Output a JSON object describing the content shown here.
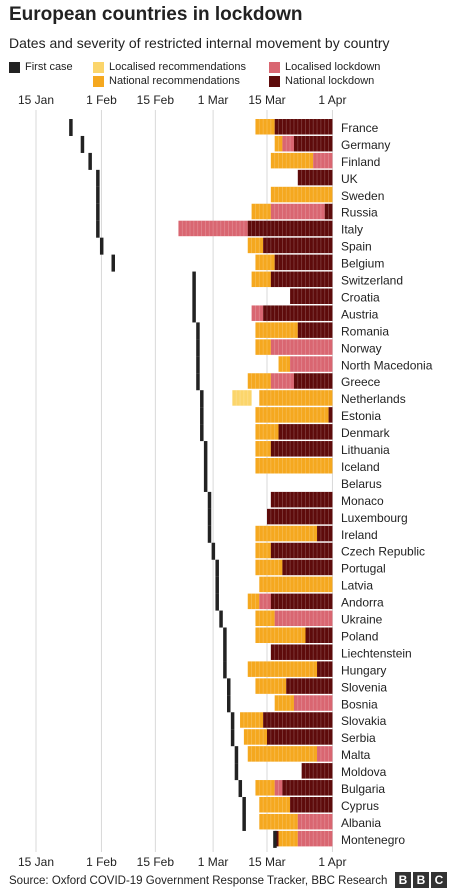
{
  "title": "European countries in lockdown",
  "subtitle": "Dates and severity of restricted internal movement by country",
  "source": "Source: Oxford COVID-19 Government Response Tracker, BBC Research",
  "logo": [
    "B",
    "B",
    "C"
  ],
  "legend": {
    "first_case": "First case",
    "loc_rec": "Localised recommendations",
    "nat_rec": "National recommendations",
    "loc_lock": "Localised lockdown",
    "nat_lock": "National lockdown"
  },
  "colors": {
    "first_case": "#222222",
    "loc_rec": "#fbd56b",
    "nat_rec": "#f5a81f",
    "loc_lock": "#d96671",
    "nat_lock": "#5e0b0b",
    "grid": "#d9d9d9"
  },
  "chart_data": {
    "type": "timeline",
    "x_axis": {
      "ticks": [
        "15 Jan",
        "1 Feb",
        "15 Feb",
        "1 Mar",
        "15 Mar",
        "1 Apr"
      ],
      "tick_days": [
        0,
        17,
        31,
        46,
        60,
        77
      ],
      "range": [
        "15 Jan",
        "1 Apr"
      ]
    },
    "level_codes": {
      "0": "none",
      "1": "Localised recommendations",
      "2": "National recommendations",
      "3": "Localised lockdown",
      "4": "National lockdown"
    },
    "countries": [
      {
        "name": "France",
        "first_case": "24 Jan",
        "segments": [
          [
            "12 Mar",
            "17 Mar",
            2
          ],
          [
            "17 Mar",
            "1 Apr",
            4
          ]
        ]
      },
      {
        "name": "Germany",
        "first_case": "27 Jan",
        "segments": [
          [
            "17 Mar",
            "19 Mar",
            2
          ],
          [
            "19 Mar",
            "22 Mar",
            3
          ],
          [
            "22 Mar",
            "1 Apr",
            4
          ]
        ]
      },
      {
        "name": "Finland",
        "first_case": "29 Jan",
        "segments": [
          [
            "16 Mar",
            "27 Mar",
            2
          ],
          [
            "27 Mar",
            "1 Apr",
            3
          ]
        ]
      },
      {
        "name": "UK",
        "first_case": "31 Jan",
        "segments": [
          [
            "23 Mar",
            "1 Apr",
            4
          ]
        ]
      },
      {
        "name": "Sweden",
        "first_case": "31 Jan",
        "segments": [
          [
            "16 Mar",
            "1 Apr",
            2
          ]
        ]
      },
      {
        "name": "Russia",
        "first_case": "31 Jan",
        "segments": [
          [
            "11 Mar",
            "16 Mar",
            2
          ],
          [
            "16 Mar",
            "30 Mar",
            3
          ],
          [
            "30 Mar",
            "1 Apr",
            4
          ]
        ]
      },
      {
        "name": "Italy",
        "first_case": "31 Jan",
        "segments": [
          [
            "21 Feb",
            "10 Mar",
            3
          ],
          [
            "10 Mar",
            "1 Apr",
            4
          ]
        ]
      },
      {
        "name": "Spain",
        "first_case": "1 Feb",
        "segments": [
          [
            "10 Mar",
            "14 Mar",
            2
          ],
          [
            "14 Mar",
            "1 Apr",
            4
          ]
        ]
      },
      {
        "name": "Belgium",
        "first_case": "4 Feb",
        "segments": [
          [
            "12 Mar",
            "17 Mar",
            2
          ],
          [
            "17 Mar",
            "1 Apr",
            4
          ]
        ]
      },
      {
        "name": "Switzerland",
        "first_case": "25 Feb",
        "segments": [
          [
            "11 Mar",
            "16 Mar",
            2
          ],
          [
            "16 Mar",
            "1 Apr",
            4
          ]
        ]
      },
      {
        "name": "Croatia",
        "first_case": "25 Feb",
        "segments": [
          [
            "21 Mar",
            "1 Apr",
            4
          ]
        ]
      },
      {
        "name": "Austria",
        "first_case": "25 Feb",
        "segments": [
          [
            "11 Mar",
            "14 Mar",
            3
          ],
          [
            "14 Mar",
            "1 Apr",
            4
          ]
        ]
      },
      {
        "name": "Romania",
        "first_case": "26 Feb",
        "segments": [
          [
            "12 Mar",
            "23 Mar",
            2
          ],
          [
            "23 Mar",
            "1 Apr",
            4
          ]
        ]
      },
      {
        "name": "Norway",
        "first_case": "26 Feb",
        "segments": [
          [
            "12 Mar",
            "16 Mar",
            2
          ],
          [
            "16 Mar",
            "1 Apr",
            3
          ]
        ]
      },
      {
        "name": "North Macedonia",
        "first_case": "26 Feb",
        "segments": [
          [
            "18 Mar",
            "21 Mar",
            2
          ],
          [
            "21 Mar",
            "1 Apr",
            3
          ]
        ]
      },
      {
        "name": "Greece",
        "first_case": "26 Feb",
        "segments": [
          [
            "10 Mar",
            "16 Mar",
            2
          ],
          [
            "16 Mar",
            "22 Mar",
            3
          ],
          [
            "22 Mar",
            "1 Apr",
            4
          ]
        ]
      },
      {
        "name": "Netherlands",
        "first_case": "27 Feb",
        "segments": [
          [
            "6 Mar",
            "11 Mar",
            1
          ],
          [
            "13 Mar",
            "1 Apr",
            2
          ]
        ]
      },
      {
        "name": "Estonia",
        "first_case": "27 Feb",
        "segments": [
          [
            "12 Mar",
            "31 Mar",
            2
          ],
          [
            "31 Mar",
            "1 Apr",
            4
          ]
        ]
      },
      {
        "name": "Denmark",
        "first_case": "27 Feb",
        "segments": [
          [
            "12 Mar",
            "18 Mar",
            2
          ],
          [
            "18 Mar",
            "1 Apr",
            4
          ]
        ]
      },
      {
        "name": "Lithuania",
        "first_case": "28 Feb",
        "segments": [
          [
            "12 Mar",
            "16 Mar",
            2
          ],
          [
            "16 Mar",
            "1 Apr",
            4
          ]
        ]
      },
      {
        "name": "Iceland",
        "first_case": "28 Feb",
        "segments": [
          [
            "12 Mar",
            "1 Apr",
            2
          ]
        ]
      },
      {
        "name": "Belarus",
        "first_case": "28 Feb",
        "segments": []
      },
      {
        "name": "Monaco",
        "first_case": "29 Feb",
        "segments": [
          [
            "16 Mar",
            "1 Apr",
            4
          ]
        ]
      },
      {
        "name": "Luxembourg",
        "first_case": "29 Feb",
        "segments": [
          [
            "15 Mar",
            "1 Apr",
            4
          ]
        ]
      },
      {
        "name": "Ireland",
        "first_case": "29 Feb",
        "segments": [
          [
            "12 Mar",
            "28 Mar",
            2
          ],
          [
            "28 Mar",
            "1 Apr",
            4
          ]
        ]
      },
      {
        "name": "Czech Republic",
        "first_case": "1 Mar",
        "segments": [
          [
            "12 Mar",
            "16 Mar",
            2
          ],
          [
            "16 Mar",
            "1 Apr",
            4
          ]
        ]
      },
      {
        "name": "Portugal",
        "first_case": "2 Mar",
        "segments": [
          [
            "12 Mar",
            "19 Mar",
            2
          ],
          [
            "19 Mar",
            "1 Apr",
            4
          ]
        ]
      },
      {
        "name": "Latvia",
        "first_case": "2 Mar",
        "segments": [
          [
            "13 Mar",
            "1 Apr",
            2
          ]
        ]
      },
      {
        "name": "Andorra",
        "first_case": "2 Mar",
        "segments": [
          [
            "10 Mar",
            "13 Mar",
            2
          ],
          [
            "13 Mar",
            "16 Mar",
            3
          ],
          [
            "16 Mar",
            "1 Apr",
            4
          ]
        ]
      },
      {
        "name": "Ukraine",
        "first_case": "3 Mar",
        "segments": [
          [
            "12 Mar",
            "17 Mar",
            2
          ],
          [
            "17 Mar",
            "1 Apr",
            3
          ]
        ]
      },
      {
        "name": "Poland",
        "first_case": "4 Mar",
        "segments": [
          [
            "12 Mar",
            "25 Mar",
            2
          ],
          [
            "25 Mar",
            "1 Apr",
            4
          ]
        ]
      },
      {
        "name": "Liechtenstein",
        "first_case": "4 Mar",
        "segments": [
          [
            "16 Mar",
            "1 Apr",
            4
          ]
        ]
      },
      {
        "name": "Hungary",
        "first_case": "4 Mar",
        "segments": [
          [
            "10 Mar",
            "28 Mar",
            2
          ],
          [
            "28 Mar",
            "1 Apr",
            4
          ]
        ]
      },
      {
        "name": "Slovenia",
        "first_case": "5 Mar",
        "segments": [
          [
            "12 Mar",
            "20 Mar",
            2
          ],
          [
            "20 Mar",
            "1 Apr",
            4
          ]
        ]
      },
      {
        "name": "Bosnia",
        "first_case": "5 Mar",
        "segments": [
          [
            "17 Mar",
            "22 Mar",
            2
          ],
          [
            "22 Mar",
            "1 Apr",
            3
          ]
        ]
      },
      {
        "name": "Slovakia",
        "first_case": "6 Mar",
        "segments": [
          [
            "8 Mar",
            "14 Mar",
            2
          ],
          [
            "14 Mar",
            "1 Apr",
            4
          ]
        ]
      },
      {
        "name": "Serbia",
        "first_case": "6 Mar",
        "segments": [
          [
            "9 Mar",
            "15 Mar",
            2
          ],
          [
            "15 Mar",
            "1 Apr",
            4
          ]
        ]
      },
      {
        "name": "Malta",
        "first_case": "7 Mar",
        "segments": [
          [
            "10 Mar",
            "28 Mar",
            2
          ],
          [
            "28 Mar",
            "1 Apr",
            3
          ]
        ]
      },
      {
        "name": "Moldova",
        "first_case": "7 Mar",
        "segments": [
          [
            "24 Mar",
            "1 Apr",
            4
          ]
        ]
      },
      {
        "name": "Bulgaria",
        "first_case": "8 Mar",
        "segments": [
          [
            "12 Mar",
            "17 Mar",
            2
          ],
          [
            "17 Mar",
            "19 Mar",
            3
          ],
          [
            "19 Mar",
            "1 Apr",
            4
          ]
        ]
      },
      {
        "name": "Cyprus",
        "first_case": "9 Mar",
        "segments": [
          [
            "13 Mar",
            "21 Mar",
            2
          ],
          [
            "21 Mar",
            "1 Apr",
            4
          ]
        ]
      },
      {
        "name": "Albania",
        "first_case": "9 Mar",
        "segments": [
          [
            "13 Mar",
            "23 Mar",
            2
          ],
          [
            "23 Mar",
            "1 Apr",
            3
          ]
        ]
      },
      {
        "name": "Montenegro",
        "first_case": "17 Mar",
        "segments": [
          [
            "17 Mar",
            "18 Mar",
            4
          ],
          [
            "18 Mar",
            "23 Mar",
            2
          ],
          [
            "23 Mar",
            "1 Apr",
            3
          ]
        ]
      }
    ]
  }
}
